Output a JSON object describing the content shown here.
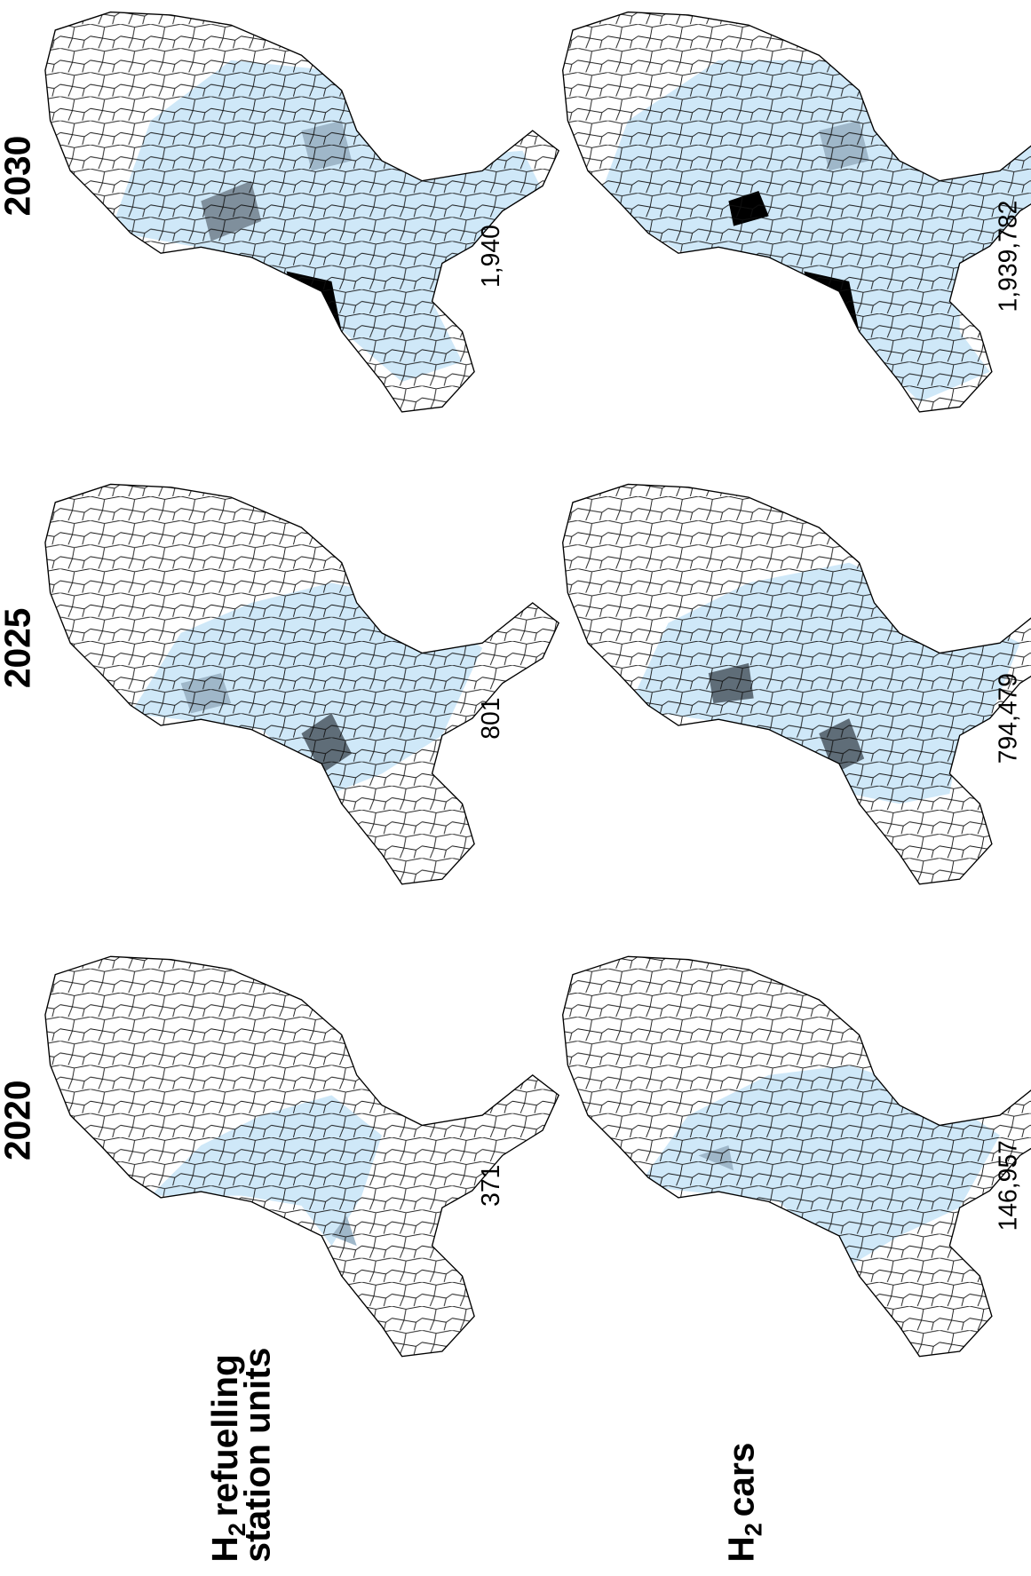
{
  "columns": [
    "2020",
    "2025",
    "2030"
  ],
  "rows": [
    {
      "label": {
        "symbol": "H",
        "subscript": "2",
        "lines": [
          "refuelling",
          "station units"
        ]
      },
      "totals": [
        "371",
        "801",
        "1,940"
      ]
    },
    {
      "label": {
        "symbol": "H",
        "subscript": "2",
        "lines": [
          "cars"
        ]
      },
      "totals": [
        "146,957",
        "794,479",
        "1,939,782"
      ]
    }
  ]
}
